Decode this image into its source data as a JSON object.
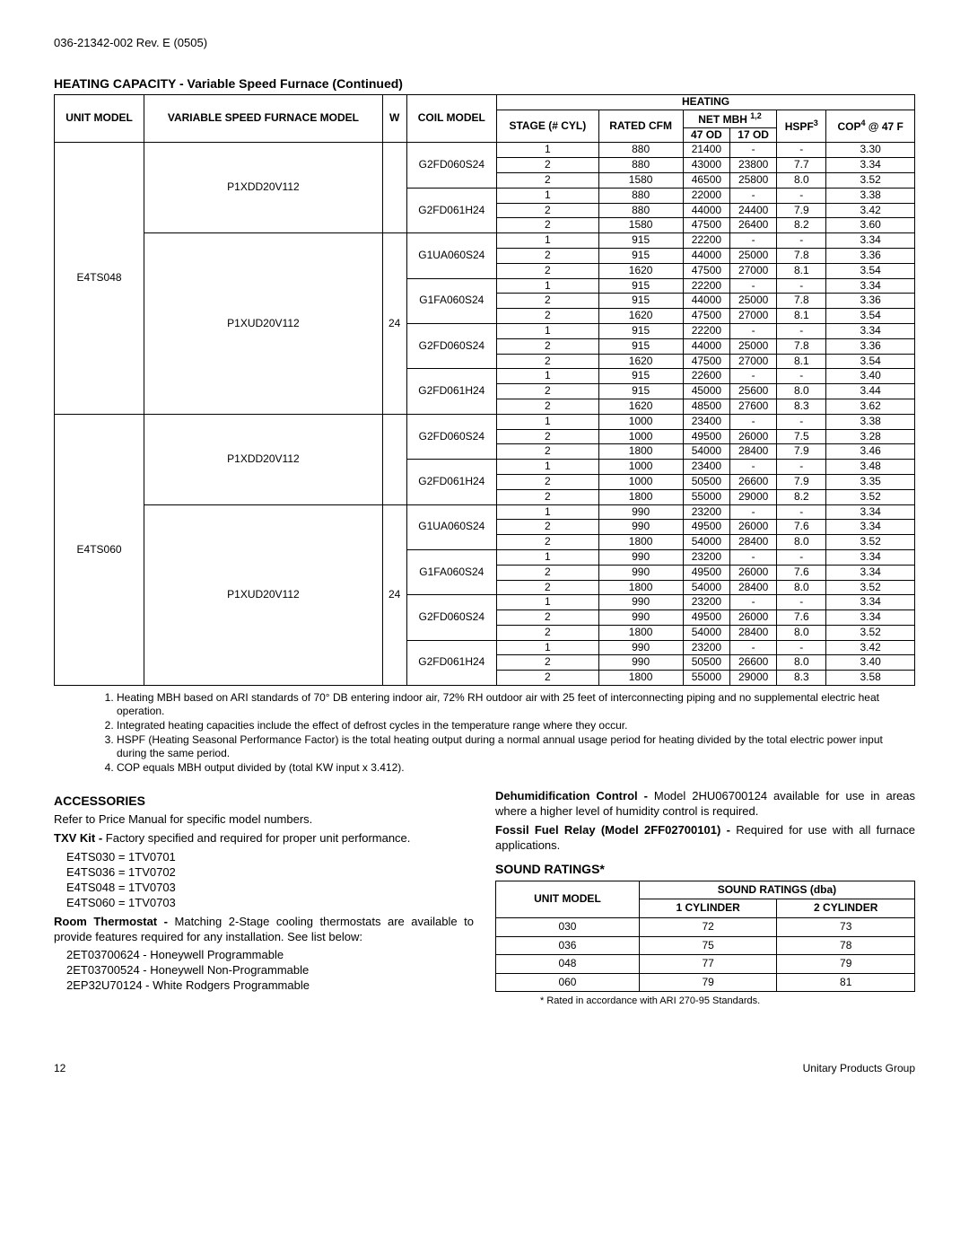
{
  "doc_number": "036-21342-002 Rev. E (0505)",
  "section_heating": "HEATING CAPACITY - Variable Speed Furnace (Continued)",
  "table_headers": {
    "unit_model": "UNIT MODEL",
    "furnace_model": "VARIABLE SPEED FURNACE MODEL",
    "w": "W",
    "coil_model": "COIL MODEL",
    "heating": "HEATING",
    "stage": "STAGE (# CYL)",
    "rated_cfm": "RATED CFM",
    "net_mbh": "NET MBH ",
    "net_mbh_sup": "1,2",
    "od47": "47 OD",
    "od17": "17 OD",
    "hspf": "HSPF",
    "hspf_sup": "3",
    "cop": "COP",
    "cop_sup": "4",
    "cop_suffix": " @ 47 F"
  },
  "groups": [
    {
      "unit_model": "E4TS048",
      "furnaces": [
        {
          "model": "P1XDD20V112",
          "w": "",
          "coils": [
            {
              "coil": "G2FD060S24",
              "rows": [
                {
                  "stage": "1",
                  "cfm": "880",
                  "od47": "21400",
                  "od17": "-",
                  "hspf": "-",
                  "cop": "3.30"
                },
                {
                  "stage": "2",
                  "cfm": "880",
                  "od47": "43000",
                  "od17": "23800",
                  "hspf": "7.7",
                  "cop": "3.34"
                },
                {
                  "stage": "2",
                  "cfm": "1580",
                  "od47": "46500",
                  "od17": "25800",
                  "hspf": "8.0",
                  "cop": "3.52"
                }
              ]
            },
            {
              "coil": "G2FD061H24",
              "rows": [
                {
                  "stage": "1",
                  "cfm": "880",
                  "od47": "22000",
                  "od17": "-",
                  "hspf": "-",
                  "cop": "3.38"
                },
                {
                  "stage": "2",
                  "cfm": "880",
                  "od47": "44000",
                  "od17": "24400",
                  "hspf": "7.9",
                  "cop": "3.42"
                },
                {
                  "stage": "2",
                  "cfm": "1580",
                  "od47": "47500",
                  "od17": "26400",
                  "hspf": "8.2",
                  "cop": "3.60"
                }
              ]
            }
          ]
        },
        {
          "model": "P1XUD20V112",
          "w": "24",
          "coils": [
            {
              "coil": "G1UA060S24",
              "rows": [
                {
                  "stage": "1",
                  "cfm": "915",
                  "od47": "22200",
                  "od17": "-",
                  "hspf": "-",
                  "cop": "3.34"
                },
                {
                  "stage": "2",
                  "cfm": "915",
                  "od47": "44000",
                  "od17": "25000",
                  "hspf": "7.8",
                  "cop": "3.36"
                },
                {
                  "stage": "2",
                  "cfm": "1620",
                  "od47": "47500",
                  "od17": "27000",
                  "hspf": "8.1",
                  "cop": "3.54"
                }
              ]
            },
            {
              "coil": "G1FA060S24",
              "rows": [
                {
                  "stage": "1",
                  "cfm": "915",
                  "od47": "22200",
                  "od17": "-",
                  "hspf": "-",
                  "cop": "3.34"
                },
                {
                  "stage": "2",
                  "cfm": "915",
                  "od47": "44000",
                  "od17": "25000",
                  "hspf": "7.8",
                  "cop": "3.36"
                },
                {
                  "stage": "2",
                  "cfm": "1620",
                  "od47": "47500",
                  "od17": "27000",
                  "hspf": "8.1",
                  "cop": "3.54"
                }
              ]
            },
            {
              "coil": "G2FD060S24",
              "rows": [
                {
                  "stage": "1",
                  "cfm": "915",
                  "od47": "22200",
                  "od17": "-",
                  "hspf": "-",
                  "cop": "3.34"
                },
                {
                  "stage": "2",
                  "cfm": "915",
                  "od47": "44000",
                  "od17": "25000",
                  "hspf": "7.8",
                  "cop": "3.36"
                },
                {
                  "stage": "2",
                  "cfm": "1620",
                  "od47": "47500",
                  "od17": "27000",
                  "hspf": "8.1",
                  "cop": "3.54"
                }
              ]
            },
            {
              "coil": "G2FD061H24",
              "rows": [
                {
                  "stage": "1",
                  "cfm": "915",
                  "od47": "22600",
                  "od17": "-",
                  "hspf": "-",
                  "cop": "3.40"
                },
                {
                  "stage": "2",
                  "cfm": "915",
                  "od47": "45000",
                  "od17": "25600",
                  "hspf": "8.0",
                  "cop": "3.44"
                },
                {
                  "stage": "2",
                  "cfm": "1620",
                  "od47": "48500",
                  "od17": "27600",
                  "hspf": "8.3",
                  "cop": "3.62"
                }
              ]
            }
          ]
        }
      ]
    },
    {
      "unit_model": "E4TS060",
      "furnaces": [
        {
          "model": "P1XDD20V112",
          "w": "",
          "coils": [
            {
              "coil": "G2FD060S24",
              "rows": [
                {
                  "stage": "1",
                  "cfm": "1000",
                  "od47": "23400",
                  "od17": "-",
                  "hspf": "-",
                  "cop": "3.38"
                },
                {
                  "stage": "2",
                  "cfm": "1000",
                  "od47": "49500",
                  "od17": "26000",
                  "hspf": "7.5",
                  "cop": "3.28"
                },
                {
                  "stage": "2",
                  "cfm": "1800",
                  "od47": "54000",
                  "od17": "28400",
                  "hspf": "7.9",
                  "cop": "3.46"
                }
              ]
            },
            {
              "coil": "G2FD061H24",
              "rows": [
                {
                  "stage": "1",
                  "cfm": "1000",
                  "od47": "23400",
                  "od17": "-",
                  "hspf": "-",
                  "cop": "3.48"
                },
                {
                  "stage": "2",
                  "cfm": "1000",
                  "od47": "50500",
                  "od17": "26600",
                  "hspf": "7.9",
                  "cop": "3.35"
                },
                {
                  "stage": "2",
                  "cfm": "1800",
                  "od47": "55000",
                  "od17": "29000",
                  "hspf": "8.2",
                  "cop": "3.52"
                }
              ]
            }
          ]
        },
        {
          "model": "P1XUD20V112",
          "w": "24",
          "coils": [
            {
              "coil": "G1UA060S24",
              "rows": [
                {
                  "stage": "1",
                  "cfm": "990",
                  "od47": "23200",
                  "od17": "-",
                  "hspf": "-",
                  "cop": "3.34"
                },
                {
                  "stage": "2",
                  "cfm": "990",
                  "od47": "49500",
                  "od17": "26000",
                  "hspf": "7.6",
                  "cop": "3.34"
                },
                {
                  "stage": "2",
                  "cfm": "1800",
                  "od47": "54000",
                  "od17": "28400",
                  "hspf": "8.0",
                  "cop": "3.52"
                }
              ]
            },
            {
              "coil": "G1FA060S24",
              "rows": [
                {
                  "stage": "1",
                  "cfm": "990",
                  "od47": "23200",
                  "od17": "-",
                  "hspf": "-",
                  "cop": "3.34"
                },
                {
                  "stage": "2",
                  "cfm": "990",
                  "od47": "49500",
                  "od17": "26000",
                  "hspf": "7.6",
                  "cop": "3.34"
                },
                {
                  "stage": "2",
                  "cfm": "1800",
                  "od47": "54000",
                  "od17": "28400",
                  "hspf": "8.0",
                  "cop": "3.52"
                }
              ]
            },
            {
              "coil": "G2FD060S24",
              "rows": [
                {
                  "stage": "1",
                  "cfm": "990",
                  "od47": "23200",
                  "od17": "-",
                  "hspf": "-",
                  "cop": "3.34"
                },
                {
                  "stage": "2",
                  "cfm": "990",
                  "od47": "49500",
                  "od17": "26000",
                  "hspf": "7.6",
                  "cop": "3.34"
                },
                {
                  "stage": "2",
                  "cfm": "1800",
                  "od47": "54000",
                  "od17": "28400",
                  "hspf": "8.0",
                  "cop": "3.52"
                }
              ]
            },
            {
              "coil": "G2FD061H24",
              "rows": [
                {
                  "stage": "1",
                  "cfm": "990",
                  "od47": "23200",
                  "od17": "-",
                  "hspf": "-",
                  "cop": "3.42"
                },
                {
                  "stage": "2",
                  "cfm": "990",
                  "od47": "50500",
                  "od17": "26600",
                  "hspf": "8.0",
                  "cop": "3.40"
                },
                {
                  "stage": "2",
                  "cfm": "1800",
                  "od47": "55000",
                  "od17": "29000",
                  "hspf": "8.3",
                  "cop": "3.58"
                }
              ]
            }
          ]
        }
      ]
    }
  ],
  "notes": [
    "Heating MBH based on ARI standards of 70° DB entering indoor air, 72% RH outdoor air with 25 feet of interconnecting piping and no supplemental electric heat operation.",
    "Integrated heating capacities include the effect of defrost cycles in the temperature range where they occur.",
    "HSPF (Heating Seasonal Performance Factor) is the total heating output during a normal annual usage period for heating divided by the total electric power input during the same period.",
    "COP equals MBH output divided by (total KW input x 3.412)."
  ],
  "section_accessories": "ACCESSORIES",
  "acc": {
    "refer": "Refer to Price Manual for specific model numbers.",
    "txv_label": "TXV Kit - ",
    "txv_text": "Factory specified and required for proper unit performance.",
    "txv_list": [
      "E4TS030 = 1TV0701",
      "E4TS036 = 1TV0702",
      "E4TS048 = 1TV0703",
      "E4TS060 = 1TV0703"
    ],
    "room_label": "Room Thermostat - ",
    "room_text": "Matching 2-Stage cooling thermostats are available to provide features required for any installation. See list below:",
    "room_list": [
      "2ET03700624 - Honeywell Programmable",
      "2ET03700524 - Honeywell Non-Programmable",
      "2EP32U70124 - White Rodgers Programmable"
    ],
    "dehum_label": "Dehumidification Control - ",
    "dehum_text": "Model 2HU06700124 available for use in areas where a higher level of humidity control is required.",
    "fossil_label": "Fossil Fuel Relay (Model 2FF02700101) - ",
    "fossil_text": "Required for use with all furnace applications."
  },
  "section_sound": "SOUND RATINGS*",
  "sound": {
    "h_unit": "UNIT MODEL",
    "h_ratings": "SOUND RATINGS (dba)",
    "h_c1": "1 CYLINDER",
    "h_c2": "2 CYLINDER",
    "rows": [
      {
        "m": "030",
        "c1": "72",
        "c2": "73"
      },
      {
        "m": "036",
        "c1": "75",
        "c2": "78"
      },
      {
        "m": "048",
        "c1": "77",
        "c2": "79"
      },
      {
        "m": "060",
        "c1": "79",
        "c2": "81"
      }
    ],
    "footnote": "* Rated in accordance with ARI 270-95 Standards."
  },
  "footer": {
    "page": "12",
    "right": "Unitary Products Group"
  }
}
